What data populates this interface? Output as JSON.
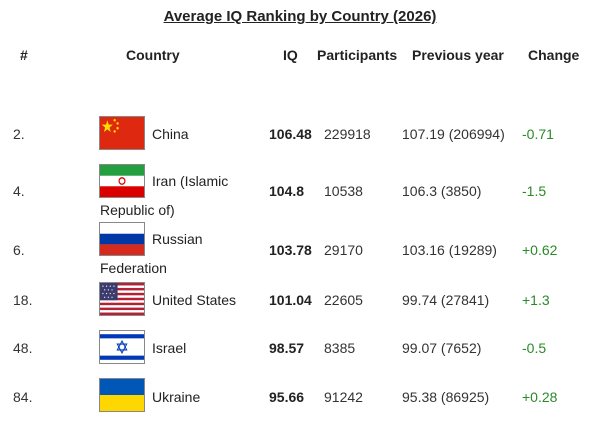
{
  "title": "Average IQ Ranking by Country (2026)",
  "headers": {
    "rank": "#",
    "country": "Country",
    "iq": "IQ",
    "participants": "Participants",
    "previous": "Previous year",
    "change": "Change"
  },
  "colors": {
    "change": "#2a8a2a",
    "text": "#222222"
  },
  "rows": [
    {
      "rank": "2.",
      "country_line1": "China",
      "country_line2": "",
      "flag_icon": "china-flag-icon",
      "iq": "106.48",
      "participants": "229918",
      "previous": "107.19 (206994)",
      "change": "-0.71"
    },
    {
      "rank": "4.",
      "country_line1": "Iran (Islamic",
      "country_line2": "Republic of)",
      "flag_icon": "iran-flag-icon",
      "iq": "104.8",
      "participants": "10538",
      "previous": "106.3 (3850)",
      "change": "-1.5"
    },
    {
      "rank": "6.",
      "country_line1": "Russian",
      "country_line2": "Federation",
      "flag_icon": "russia-flag-icon",
      "iq": "103.78",
      "participants": "29170",
      "previous": "103.16 (19289)",
      "change": "+0.62"
    },
    {
      "rank": "18.",
      "country_line1": "United States",
      "country_line2": "",
      "flag_icon": "usa-flag-icon",
      "iq": "101.04",
      "participants": "22605",
      "previous": "99.74 (27841)",
      "change": "+1.3"
    },
    {
      "rank": "48.",
      "country_line1": "Israel",
      "country_line2": "",
      "flag_icon": "israel-flag-icon",
      "iq": "98.57",
      "participants": "8385",
      "previous": "99.07 (7652)",
      "change": "-0.5"
    },
    {
      "rank": "84.",
      "country_line1": "Ukraine",
      "country_line2": "",
      "flag_icon": "ukraine-flag-icon",
      "iq": "95.66",
      "participants": "91242",
      "previous": "95.38 (86925)",
      "change": "+0.28"
    }
  ]
}
